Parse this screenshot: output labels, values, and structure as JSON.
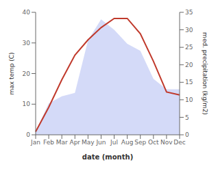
{
  "chart_data": {
    "type": "line",
    "xlabel": "date (month)",
    "ylabel": "max temp (C)",
    "y2label": "med. precipitation (kg/m2)",
    "categories": [
      "Jan",
      "Feb",
      "Mar",
      "Apr",
      "May",
      "Jun",
      "Jul",
      "Aug",
      "Sep",
      "Oct",
      "Nov",
      "Dec"
    ],
    "series": [
      {
        "type": "area",
        "axis": "y2",
        "color": "#c5cef5",
        "values": [
          1,
          9,
          11,
          12,
          27,
          33,
          30,
          26,
          24,
          16,
          13,
          13
        ]
      },
      {
        "type": "line",
        "color": "#c0392b",
        "values": [
          1,
          9,
          18,
          26,
          31,
          35,
          38,
          38,
          33,
          24,
          14,
          13
        ]
      }
    ],
    "ylim": [
      0,
      40
    ],
    "yticks": [
      0,
      10,
      20,
      30,
      40
    ],
    "y2lim": [
      0,
      35
    ],
    "y2ticks": [
      0,
      5,
      10,
      15,
      20,
      25,
      30,
      35
    ],
    "grid": false
  }
}
